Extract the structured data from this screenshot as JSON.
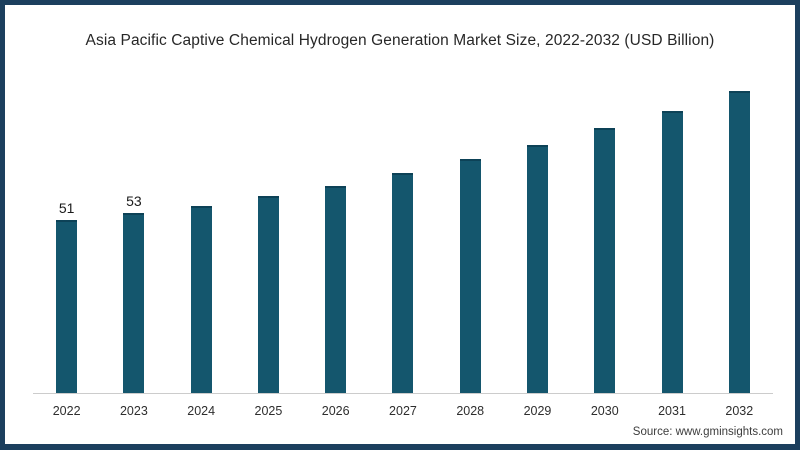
{
  "page": {
    "frame_color": "#1c3f5e",
    "background": "#ffffff"
  },
  "chart_data": {
    "type": "bar",
    "title": "Asia Pacific Captive Chemical Hydrogen Generation Market Size, 2022-2032 (USD Billion)",
    "categories": [
      "2022",
      "2023",
      "2024",
      "2025",
      "2026",
      "2027",
      "2028",
      "2029",
      "2030",
      "2031",
      "2032"
    ],
    "values": [
      51,
      53,
      55,
      58,
      61,
      65,
      69,
      73,
      78,
      83,
      89
    ],
    "data_labels": [
      "51",
      "53",
      "",
      "",
      "",
      "",
      "",
      "",
      "",
      "",
      ""
    ],
    "xlabel": "",
    "ylabel": "",
    "ylim": [
      0,
      90
    ],
    "grid": false,
    "legend": "none",
    "bar_color": "#14566d",
    "bar_top_color": "#0d4257",
    "axis_line_color": "#cccccc"
  },
  "source": {
    "text": "Source: www.gminsights.com"
  }
}
